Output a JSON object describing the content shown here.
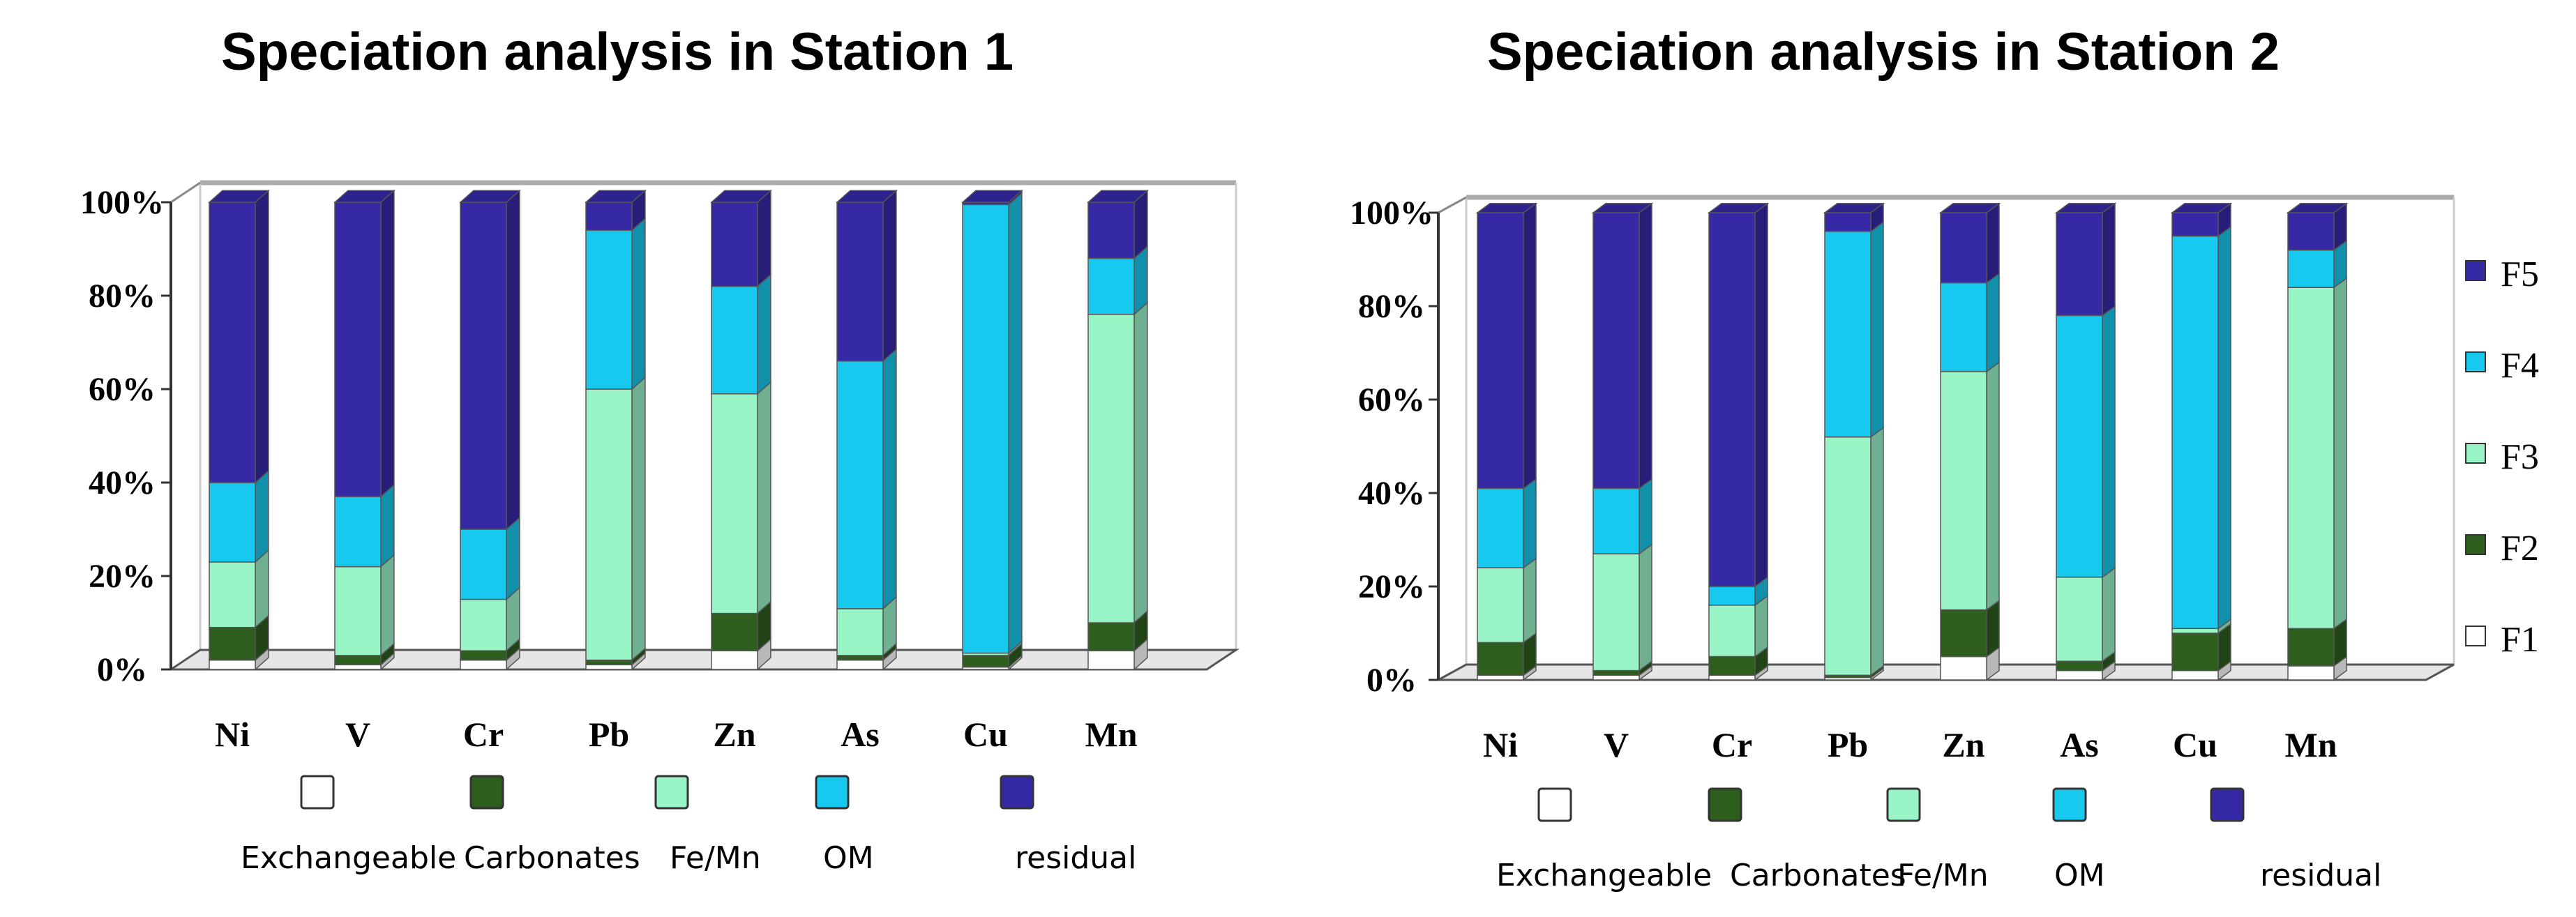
{
  "chart_data": [
    {
      "type": "bar",
      "stacked": true,
      "percent": true,
      "title": "Speciation analysis in Station 1",
      "categories": [
        "Ni",
        "V",
        "Cr",
        "Pb",
        "Zn",
        "As",
        "Cu",
        "Mn"
      ],
      "yticks": [
        "0%",
        "20%",
        "40%",
        "60%",
        "80%",
        "100%"
      ],
      "ylim": [
        0,
        100
      ],
      "legend_position": "bottom",
      "legend": [
        "Exchangeable",
        "Carbonates",
        "Fe/Mn",
        "OM",
        "residual"
      ],
      "series": [
        {
          "name": "Exchangeable",
          "color": "#ffffff",
          "values": [
            2,
            1,
            2,
            1,
            4,
            2,
            0.5,
            4
          ]
        },
        {
          "name": "Carbonates",
          "color": "#2d5e1e",
          "values": [
            7,
            2,
            2,
            1,
            8,
            1,
            2.5,
            6
          ]
        },
        {
          "name": "Fe/Mn",
          "color": "#99f5c6",
          "values": [
            14,
            19,
            11,
            58,
            47,
            10,
            0.5,
            66
          ]
        },
        {
          "name": "OM",
          "color": "#17c8ef",
          "values": [
            17,
            15,
            15,
            34,
            23,
            53,
            96,
            12
          ]
        },
        {
          "name": "residual",
          "color": "#3529a6",
          "values": [
            60,
            63,
            70,
            6,
            18,
            34,
            0.5,
            12
          ]
        }
      ]
    },
    {
      "type": "bar",
      "stacked": true,
      "percent": true,
      "title": "Speciation analysis in Station 2",
      "categories": [
        "Ni",
        "V",
        "Cr",
        "Pb",
        "Zn",
        "As",
        "Cu",
        "Mn"
      ],
      "yticks": [
        "0%",
        "20%",
        "40%",
        "60%",
        "80%",
        "100%"
      ],
      "ylim": [
        0,
        100
      ],
      "legend_position": "bottom and right",
      "legend": [
        "Exchangeable",
        "Carbonates",
        "Fe/Mn",
        "OM",
        "residual"
      ],
      "side_legend": [
        "F5",
        "F4",
        "F3",
        "F2",
        "F1"
      ],
      "series": [
        {
          "name": "Exchangeable",
          "color": "#ffffff",
          "values": [
            1,
            1,
            1,
            0.5,
            5,
            2,
            2,
            3
          ]
        },
        {
          "name": "Carbonates",
          "color": "#2d5e1e",
          "values": [
            7,
            1,
            4,
            0.5,
            10,
            2,
            8,
            8
          ]
        },
        {
          "name": "Fe/Mn",
          "color": "#99f5c6",
          "values": [
            16,
            25,
            11,
            51,
            51,
            18,
            1,
            73
          ]
        },
        {
          "name": "OM",
          "color": "#17c8ef",
          "values": [
            17,
            14,
            4,
            44,
            19,
            56,
            84,
            8
          ]
        },
        {
          "name": "residual",
          "color": "#3529a6",
          "values": [
            59,
            59,
            80,
            4,
            15,
            22,
            5,
            8
          ]
        }
      ]
    }
  ]
}
